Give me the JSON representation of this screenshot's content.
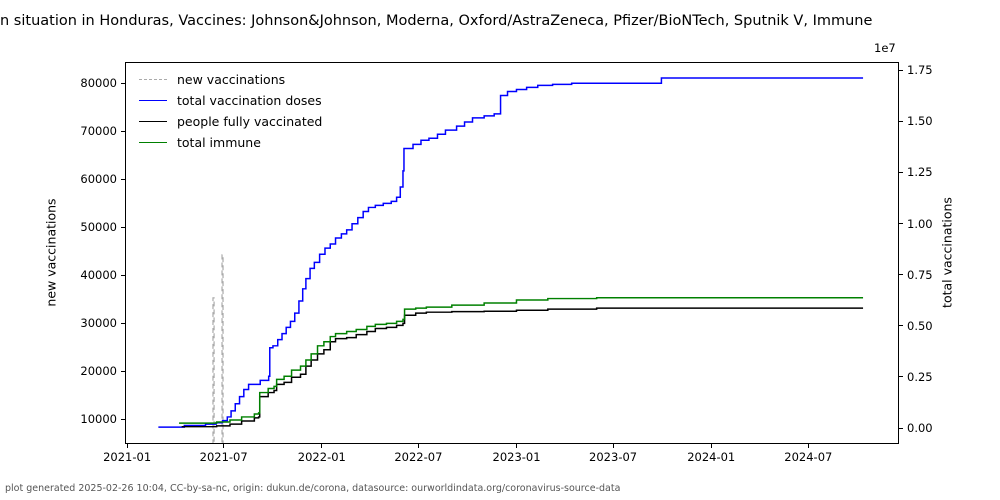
{
  "title": "n situation in Honduras, Vaccines: Johnson&Johnson, Moderna, Oxford/AstraZeneca, Pfizer/BioNTech, Sputnik V, Immune",
  "footer": "plot generated 2025-02-26 10:04, CC-by-sa-nc, origin: dukun.de/corona, datasource: ourworldindata.org/coronavirus-source-data",
  "chart_data": {
    "type": "line",
    "title": "n situation in Honduras, Vaccines: Johnson&Johnson, Moderna, Oxford/AstraZeneca, Pfizer/BioNTech, Sputnik V, Immune",
    "grid": false,
    "legend_position": "upper left",
    "x_axis": {
      "range": [
        "2020-12-28",
        "2024-12-18"
      ],
      "ticks": [
        {
          "label": "2021-01",
          "date": "2021-01-01"
        },
        {
          "label": "2021-07",
          "date": "2021-07-01"
        },
        {
          "label": "2022-01",
          "date": "2022-01-01"
        },
        {
          "label": "2022-07",
          "date": "2022-07-01"
        },
        {
          "label": "2023-01",
          "date": "2023-01-01"
        },
        {
          "label": "2023-07",
          "date": "2023-07-01"
        },
        {
          "label": "2024-01",
          "date": "2024-01-01"
        },
        {
          "label": "2024-07",
          "date": "2024-07-01"
        }
      ]
    },
    "left_axis": {
      "label": "new vaccinations",
      "range": [
        4800,
        84400
      ],
      "ticks": [
        {
          "label": "10000",
          "value": 10000
        },
        {
          "label": "20000",
          "value": 20000
        },
        {
          "label": "30000",
          "value": 30000
        },
        {
          "label": "40000",
          "value": 40000
        },
        {
          "label": "50000",
          "value": 50000
        },
        {
          "label": "60000",
          "value": 60000
        },
        {
          "label": "70000",
          "value": 70000
        },
        {
          "label": "80000",
          "value": 80000
        }
      ]
    },
    "right_axis": {
      "label": "total vaccinations",
      "offset_label": "1e7",
      "range": [
        -780000,
        17900000
      ],
      "ticks": [
        {
          "label": "0.00",
          "value": 0
        },
        {
          "label": "0.25",
          "value": 2500000
        },
        {
          "label": "0.50",
          "value": 5000000
        },
        {
          "label": "0.75",
          "value": 7500000
        },
        {
          "label": "1.00",
          "value": 10000000
        },
        {
          "label": "1.25",
          "value": 12500000
        },
        {
          "label": "1.50",
          "value": 15000000
        },
        {
          "label": "1.75",
          "value": 17500000
        }
      ]
    },
    "series": [
      {
        "name": "new vaccinations",
        "color": "#aaaaaa",
        "style": "dashed",
        "axis": "left",
        "points": [
          [
            "2021-03-01",
            500
          ],
          [
            "2021-06-06",
            3000
          ],
          [
            "2021-06-08",
            35200
          ],
          [
            "2021-06-10",
            3000
          ],
          [
            "2021-06-23",
            3500
          ],
          [
            "2021-06-25",
            44200
          ],
          [
            "2021-06-27",
            3500
          ],
          [
            "2021-07-20",
            2500
          ],
          [
            "2021-12-31",
            1000
          ],
          [
            "2024-10-15",
            200
          ]
        ]
      },
      {
        "name": "total vaccination doses",
        "color": "#0000ff",
        "style": "solid",
        "axis": "right",
        "points": [
          [
            "2021-02-25",
            0
          ],
          [
            "2021-04-15",
            80000
          ],
          [
            "2021-05-25",
            150000
          ],
          [
            "2021-06-14",
            220000
          ],
          [
            "2021-06-26",
            320000
          ],
          [
            "2021-07-05",
            500000
          ],
          [
            "2021-07-12",
            800000
          ],
          [
            "2021-07-20",
            1150000
          ],
          [
            "2021-07-28",
            1500000
          ],
          [
            "2021-08-05",
            1850000
          ],
          [
            "2021-08-14",
            2100000
          ],
          [
            "2021-09-05",
            2300000
          ],
          [
            "2021-09-21",
            2500000
          ],
          [
            "2021-09-23",
            3900000
          ],
          [
            "2021-09-29",
            4000000
          ],
          [
            "2021-10-08",
            4300000
          ],
          [
            "2021-10-16",
            4600000
          ],
          [
            "2021-10-24",
            4900000
          ],
          [
            "2021-11-01",
            5200000
          ],
          [
            "2021-11-09",
            5600000
          ],
          [
            "2021-11-17",
            6200000
          ],
          [
            "2021-11-24",
            6800000
          ],
          [
            "2021-11-30",
            7300000
          ],
          [
            "2021-12-08",
            7800000
          ],
          [
            "2021-12-16",
            8100000
          ],
          [
            "2021-12-26",
            8500000
          ],
          [
            "2022-01-05",
            8800000
          ],
          [
            "2022-01-15",
            9000000
          ],
          [
            "2022-01-25",
            9300000
          ],
          [
            "2022-02-05",
            9500000
          ],
          [
            "2022-02-15",
            9700000
          ],
          [
            "2022-02-25",
            10000000
          ],
          [
            "2022-03-08",
            10300000
          ],
          [
            "2022-03-18",
            10600000
          ],
          [
            "2022-03-28",
            10800000
          ],
          [
            "2022-04-10",
            10900000
          ],
          [
            "2022-04-25",
            11000000
          ],
          [
            "2022-05-10",
            11100000
          ],
          [
            "2022-05-20",
            11300000
          ],
          [
            "2022-05-27",
            11800000
          ],
          [
            "2022-06-01",
            12600000
          ],
          [
            "2022-06-03",
            13700000
          ],
          [
            "2022-06-20",
            13900000
          ],
          [
            "2022-07-05",
            14100000
          ],
          [
            "2022-07-20",
            14200000
          ],
          [
            "2022-08-05",
            14400000
          ],
          [
            "2022-08-20",
            14600000
          ],
          [
            "2022-09-10",
            14800000
          ],
          [
            "2022-09-25",
            15000000
          ],
          [
            "2022-10-10",
            15200000
          ],
          [
            "2022-11-01",
            15300000
          ],
          [
            "2022-11-20",
            15400000
          ],
          [
            "2022-12-02",
            16300000
          ],
          [
            "2022-12-15",
            16500000
          ],
          [
            "2023-01-01",
            16600000
          ],
          [
            "2023-01-20",
            16700000
          ],
          [
            "2023-02-10",
            16800000
          ],
          [
            "2023-03-10",
            16850000
          ],
          [
            "2023-04-15",
            16900000
          ],
          [
            "2023-09-25",
            16900000
          ],
          [
            "2023-10-01",
            17160000
          ],
          [
            "2024-10-15",
            17160000
          ]
        ]
      },
      {
        "name": "people fully vaccinated",
        "color": "#000000",
        "style": "solid",
        "axis": "right",
        "points": [
          [
            "2021-04-10",
            20000
          ],
          [
            "2021-06-15",
            60000
          ],
          [
            "2021-07-10",
            150000
          ],
          [
            "2021-08-01",
            300000
          ],
          [
            "2021-08-25",
            450000
          ],
          [
            "2021-09-02",
            500000
          ],
          [
            "2021-09-04",
            1500000
          ],
          [
            "2021-09-20",
            1700000
          ],
          [
            "2021-10-01",
            1800000
          ],
          [
            "2021-10-06",
            2100000
          ],
          [
            "2021-10-20",
            2200000
          ],
          [
            "2021-11-03",
            2450000
          ],
          [
            "2021-11-20",
            2600000
          ],
          [
            "2021-11-30",
            3000000
          ],
          [
            "2021-12-10",
            3300000
          ],
          [
            "2021-12-22",
            3600000
          ],
          [
            "2022-01-03",
            3800000
          ],
          [
            "2022-01-15",
            4200000
          ],
          [
            "2022-01-25",
            4350000
          ],
          [
            "2022-02-15",
            4400000
          ],
          [
            "2022-03-05",
            4550000
          ],
          [
            "2022-03-25",
            4700000
          ],
          [
            "2022-04-10",
            4850000
          ],
          [
            "2022-05-01",
            4900000
          ],
          [
            "2022-05-20",
            5000000
          ],
          [
            "2022-06-01",
            5100000
          ],
          [
            "2022-06-04",
            5500000
          ],
          [
            "2022-06-25",
            5600000
          ],
          [
            "2022-07-15",
            5650000
          ],
          [
            "2022-09-01",
            5680000
          ],
          [
            "2022-11-01",
            5700000
          ],
          [
            "2023-01-01",
            5750000
          ],
          [
            "2023-03-01",
            5800000
          ],
          [
            "2023-06-01",
            5850000
          ],
          [
            "2024-10-15",
            5850000
          ]
        ]
      },
      {
        "name": "total immune",
        "color": "#008000",
        "style": "solid",
        "axis": "right",
        "points": [
          [
            "2021-04-05",
            200000
          ],
          [
            "2021-06-15",
            250000
          ],
          [
            "2021-07-10",
            350000
          ],
          [
            "2021-08-01",
            500000
          ],
          [
            "2021-08-25",
            650000
          ],
          [
            "2021-09-02",
            700000
          ],
          [
            "2021-09-04",
            1700000
          ],
          [
            "2021-09-20",
            1900000
          ],
          [
            "2021-10-01",
            2000000
          ],
          [
            "2021-10-06",
            2350000
          ],
          [
            "2021-10-20",
            2500000
          ],
          [
            "2021-11-03",
            2800000
          ],
          [
            "2021-11-20",
            3000000
          ],
          [
            "2021-11-30",
            3300000
          ],
          [
            "2021-12-10",
            3600000
          ],
          [
            "2021-12-22",
            4000000
          ],
          [
            "2022-01-03",
            4200000
          ],
          [
            "2022-01-15",
            4450000
          ],
          [
            "2022-01-25",
            4600000
          ],
          [
            "2022-02-15",
            4700000
          ],
          [
            "2022-03-05",
            4800000
          ],
          [
            "2022-03-25",
            4950000
          ],
          [
            "2022-04-10",
            5050000
          ],
          [
            "2022-05-01",
            5100000
          ],
          [
            "2022-05-20",
            5200000
          ],
          [
            "2022-06-01",
            5300000
          ],
          [
            "2022-06-04",
            5800000
          ],
          [
            "2022-06-25",
            5850000
          ],
          [
            "2022-07-15",
            5900000
          ],
          [
            "2022-09-01",
            6000000
          ],
          [
            "2022-11-01",
            6100000
          ],
          [
            "2023-01-01",
            6250000
          ],
          [
            "2023-03-01",
            6320000
          ],
          [
            "2023-06-01",
            6360000
          ],
          [
            "2024-10-15",
            6360000
          ]
        ]
      }
    ]
  }
}
